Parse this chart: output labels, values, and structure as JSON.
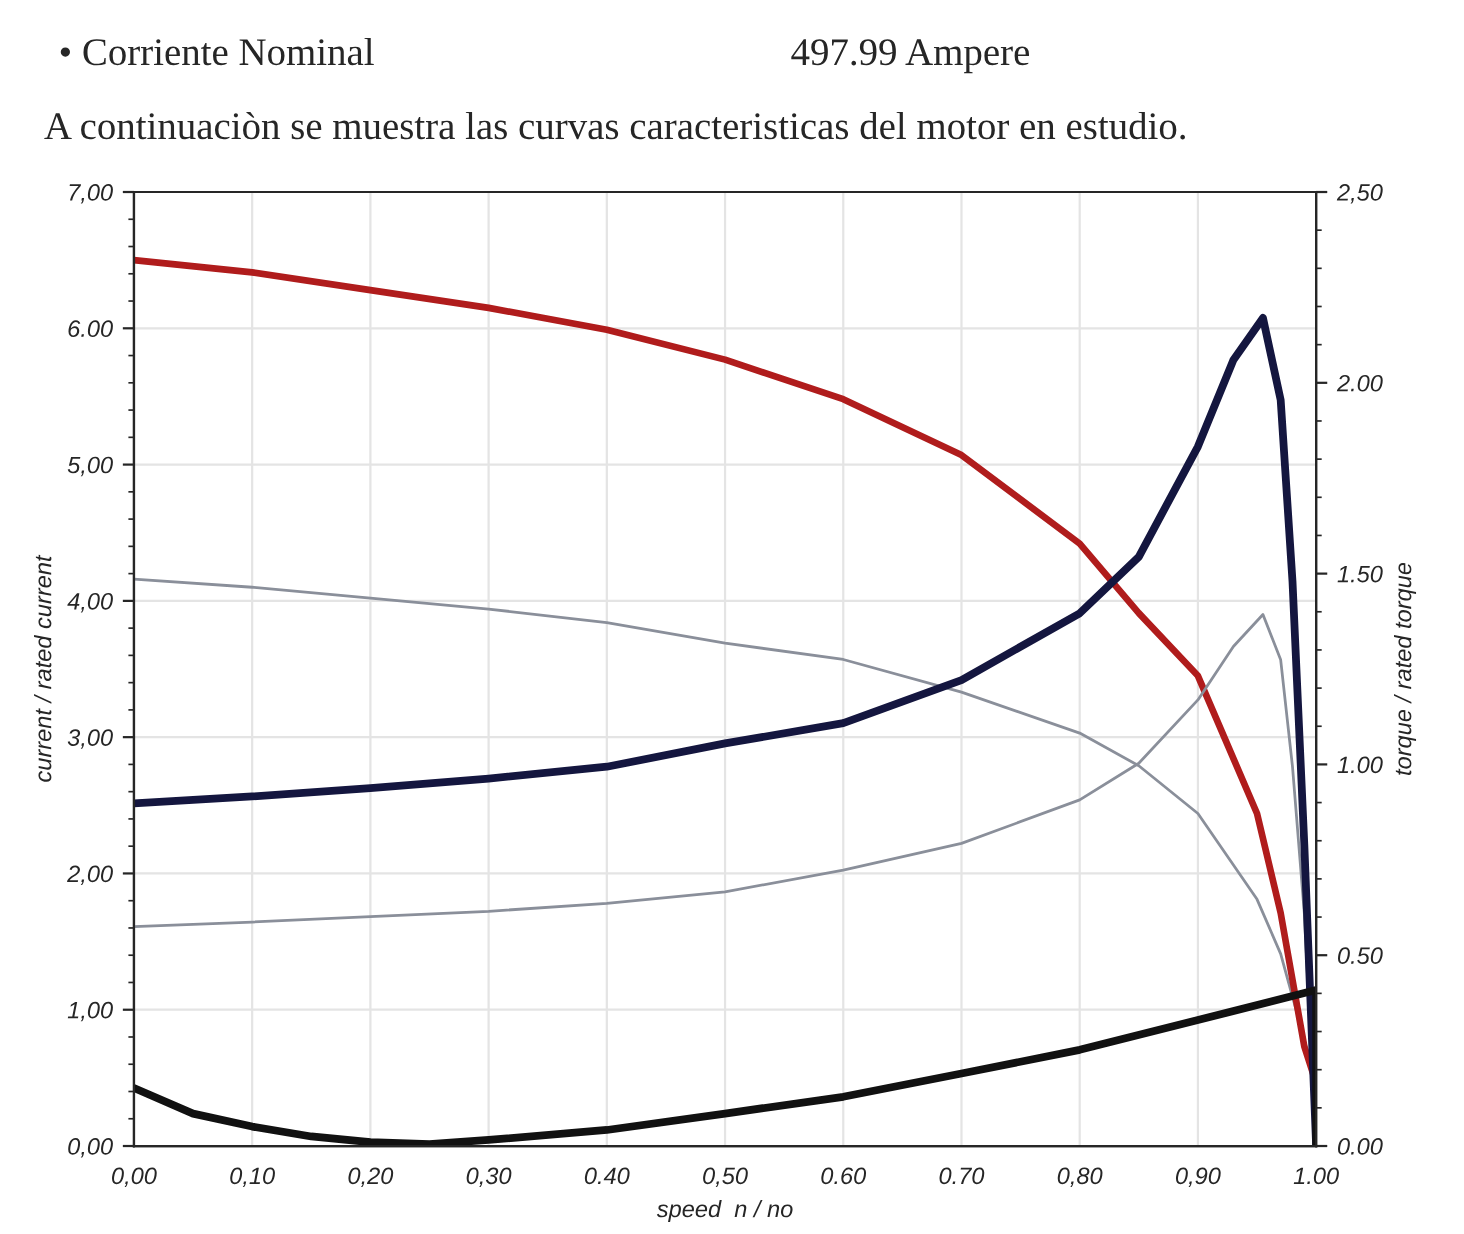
{
  "chart_data": {
    "type": "line",
    "annotations": [
      "• Corriente Nominal",
      "497.99 Ampere",
      "A continuaciòn se muestra las curvas caracteristicas del motor en estudio."
    ],
    "xlabel": "speed  n / no",
    "ylabel": "current / rated current",
    "y2label": "torque / rated torque",
    "xlim": [
      0,
      1
    ],
    "ylim": [
      0,
      7
    ],
    "y2lim": [
      0,
      2.5
    ],
    "xticks": [
      {
        "value": 0,
        "label": "0,00"
      },
      {
        "value": 0.1,
        "label": "0,10"
      },
      {
        "value": 0.2,
        "label": "0,20"
      },
      {
        "value": 0.3,
        "label": "0,30"
      },
      {
        "value": 0.4,
        "label": "0.40"
      },
      {
        "value": 0.5,
        "label": "0,50"
      },
      {
        "value": 0.6,
        "label": "0.60"
      },
      {
        "value": 0.7,
        "label": "0.70"
      },
      {
        "value": 0.8,
        "label": "0,80"
      },
      {
        "value": 0.9,
        "label": "0,90"
      },
      {
        "value": 1,
        "label": "1.00"
      }
    ],
    "yticks": [
      {
        "value": 0,
        "label": "0,00"
      },
      {
        "value": 1,
        "label": "1,00"
      },
      {
        "value": 2,
        "label": "2,00"
      },
      {
        "value": 3,
        "label": "3,00"
      },
      {
        "value": 4,
        "label": "4,00"
      },
      {
        "value": 5,
        "label": "5,00"
      },
      {
        "value": 6,
        "label": "6.00"
      },
      {
        "value": 7,
        "label": "7,00"
      }
    ],
    "y2ticks": [
      {
        "value": 0,
        "label": "0.00"
      },
      {
        "value": 0.5,
        "label": "0.50"
      },
      {
        "value": 1,
        "label": "1.00"
      },
      {
        "value": 1.5,
        "label": "1.50"
      },
      {
        "value": 2,
        "label": "2.00"
      },
      {
        "value": 2.5,
        "label": "2,50"
      }
    ],
    "grid": true,
    "marker": "none",
    "line_style": "solid",
    "series": [
      {
        "color": "#8a8f9a",
        "x": [
          0,
          0.1,
          0.2,
          0.3,
          0.4,
          0.5,
          0.6,
          0.7,
          0.8,
          0.85,
          0.9,
          0.95,
          0.97,
          0.99,
          1.0
        ],
        "values": [
          4.16,
          4.1,
          4.02,
          3.94,
          3.84,
          3.69,
          3.57,
          3.33,
          3.03,
          2.79,
          2.44,
          1.81,
          1.41,
          0.78,
          0.46
        ]
      },
      {
        "color": "#8a8f9a",
        "axis": "y2",
        "x": [
          0,
          0.1,
          0.2,
          0.3,
          0.4,
          0.5,
          0.6,
          0.7,
          0.8,
          0.85,
          0.9,
          0.93,
          0.955,
          0.97,
          0.98,
          0.99,
          1.0
        ],
        "values": [
          0.575,
          0.587,
          0.601,
          0.615,
          0.636,
          0.666,
          0.723,
          0.793,
          0.907,
          1.003,
          1.169,
          1.309,
          1.393,
          1.274,
          0.994,
          0.61,
          0
        ]
      },
      {
        "color": "#b01c1c",
        "x": [
          0,
          0.1,
          0.2,
          0.3,
          0.4,
          0.5,
          0.6,
          0.7,
          0.8,
          0.85,
          0.9,
          0.95,
          0.97,
          0.99,
          1.0
        ],
        "values": [
          6.5,
          6.41,
          6.28,
          6.15,
          5.99,
          5.77,
          5.48,
          5.07,
          4.42,
          3.91,
          3.45,
          2.44,
          1.71,
          0.73,
          0.46
        ]
      },
      {
        "color": "#14163f",
        "axis": "y2",
        "x": [
          0,
          0.1,
          0.2,
          0.3,
          0.4,
          0.5,
          0.6,
          0.7,
          0.8,
          0.85,
          0.9,
          0.93,
          0.955,
          0.97,
          0.98,
          0.99,
          1.0
        ],
        "values": [
          0.898,
          0.916,
          0.938,
          0.963,
          0.994,
          1.055,
          1.108,
          1.221,
          1.396,
          1.544,
          1.833,
          2.06,
          2.17,
          1.955,
          1.48,
          0.79,
          0
        ]
      },
      {
        "color": "#111111",
        "axis": "y2",
        "x": [
          0,
          0.05,
          0.1,
          0.15,
          0.2,
          0.25,
          0.3,
          0.4,
          0.5,
          0.6,
          0.7,
          0.8,
          0.9,
          1.0,
          1.0
        ],
        "values": [
          0.152,
          0.085,
          0.051,
          0.025,
          0.01,
          0.005,
          0.016,
          0.042,
          0.085,
          0.129,
          0.19,
          0.252,
          0.33,
          0.409,
          0
        ]
      }
    ]
  }
}
